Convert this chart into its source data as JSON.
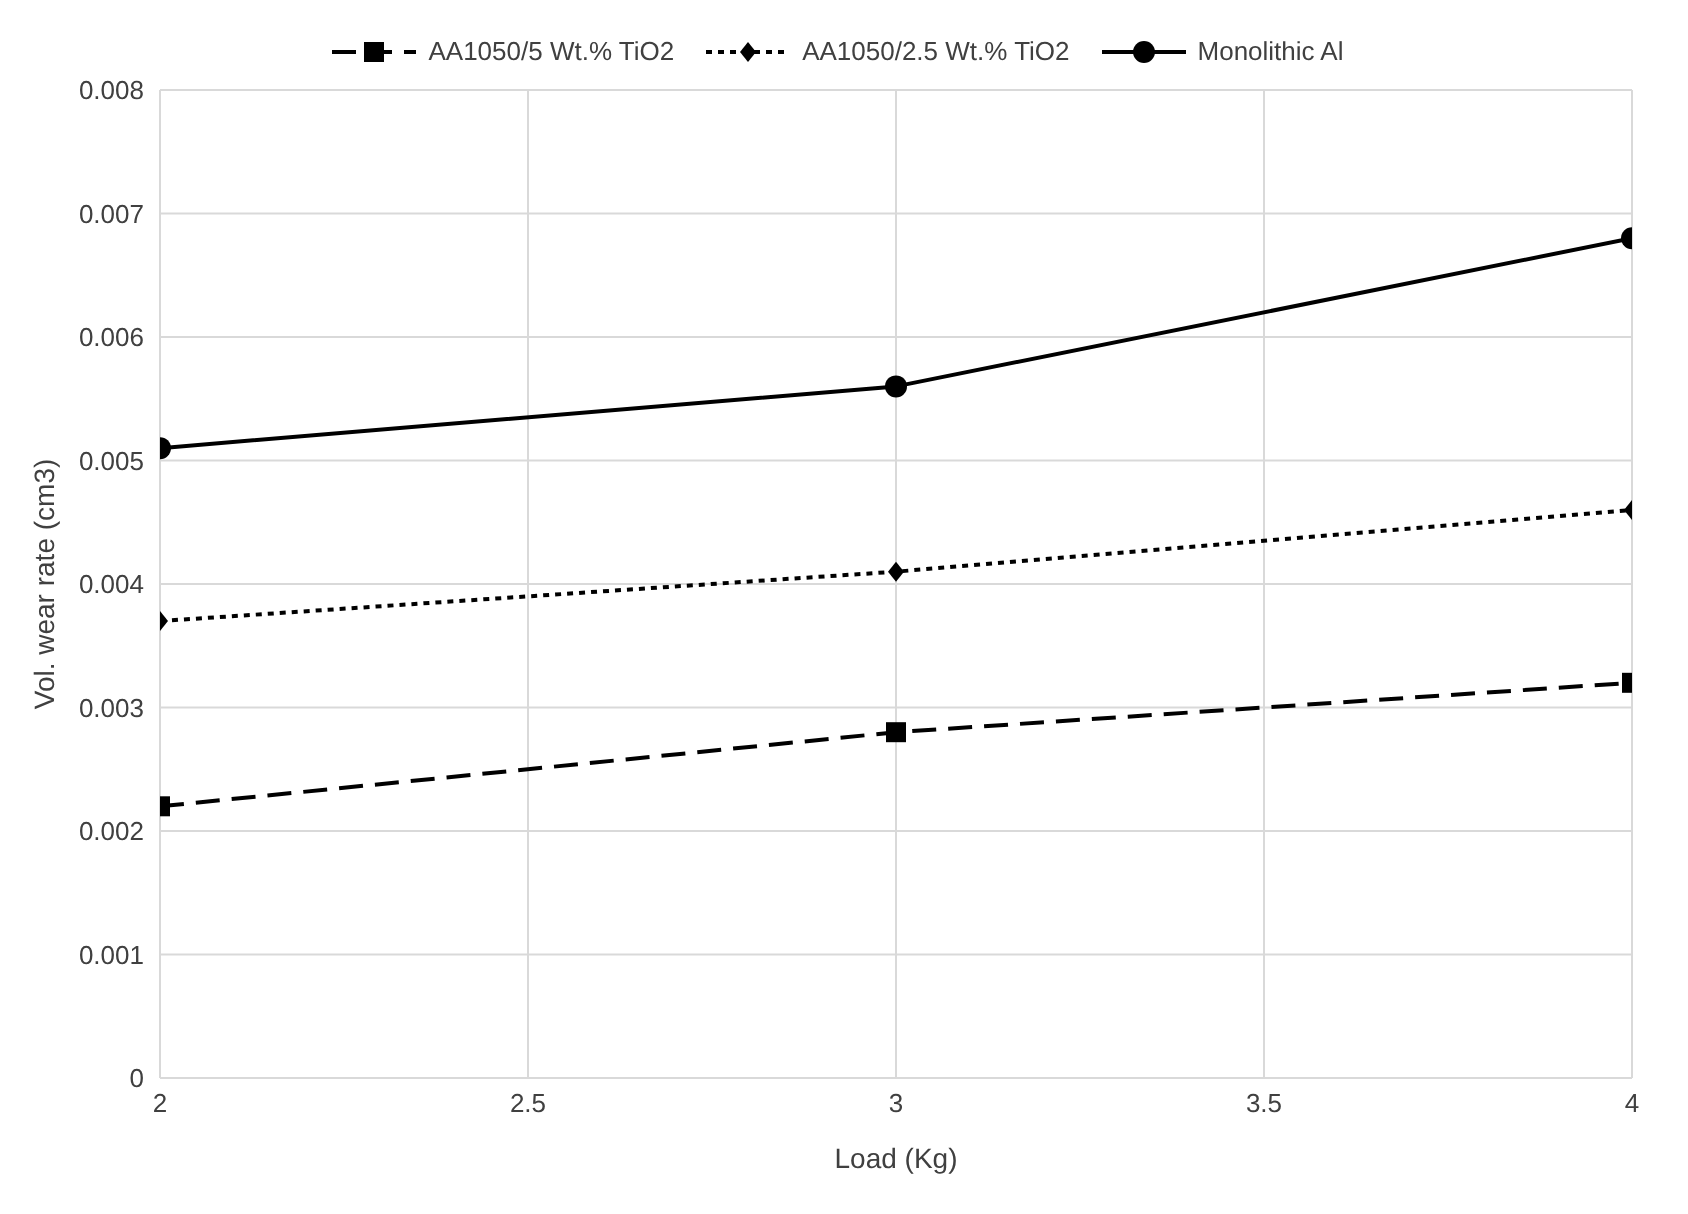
{
  "chart_data": {
    "type": "line",
    "xlabel": "Load (Kg)",
    "ylabel": "Vol. wear rate (cm3)",
    "x": [
      2,
      3,
      4
    ],
    "series": [
      {
        "name": "AA1050/5 Wt.% TiO2",
        "color": "#000000",
        "values": [
          0.0022,
          0.0028,
          0.0032
        ],
        "marker": "square",
        "line_style": "dashed"
      },
      {
        "name": "AA1050/2.5 Wt.% TiO2",
        "color": "#000000",
        "values": [
          0.0037,
          0.0041,
          0.0046
        ],
        "marker": "diamond",
        "line_style": "dotted"
      },
      {
        "name": "Monolithic Al",
        "color": "#000000",
        "values": [
          0.0051,
          0.0056,
          0.0068
        ],
        "marker": "circle",
        "line_style": "solid"
      }
    ],
    "xlim": [
      2,
      4
    ],
    "xticks": [
      2,
      2.5,
      3,
      3.5,
      4
    ],
    "ylim": [
      0,
      0.008
    ],
    "yticks": [
      0,
      0.001,
      0.002,
      0.003,
      0.004,
      0.005,
      0.006,
      0.007,
      0.008
    ],
    "grid": true,
    "legend": "top"
  }
}
